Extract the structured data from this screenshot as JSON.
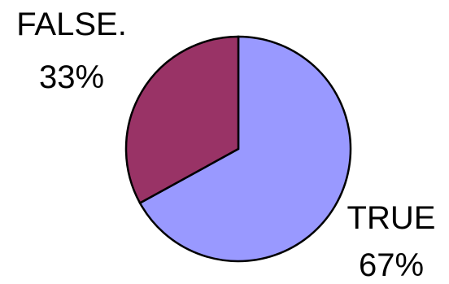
{
  "chart_data": {
    "type": "pie",
    "slices": [
      {
        "category": "TRUE",
        "value": 67,
        "percent_label": "67%",
        "color": "#9999FF"
      },
      {
        "category": "FALSE.",
        "value": 33,
        "percent_label": "33%",
        "color": "#993366"
      }
    ],
    "start_angle_deg": 0,
    "direction": "clockwise",
    "outline_color": "#000000",
    "legend": "none",
    "labels": "outside slices, category above percentage"
  }
}
